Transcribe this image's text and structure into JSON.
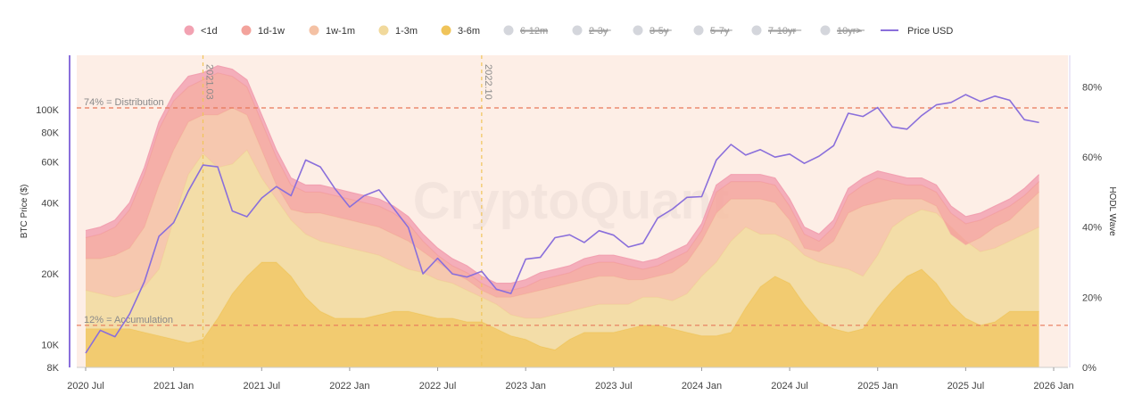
{
  "watermark": "CryptoQuant",
  "chart_data": {
    "type": "area",
    "legend": [
      {
        "label": "<1d",
        "color": "#f2a2b2",
        "active": true
      },
      {
        "label": "1d-1w",
        "color": "#f3a39c",
        "active": true
      },
      {
        "label": "1w-1m",
        "color": "#f4c1a4",
        "active": true
      },
      {
        "label": "1-3m",
        "color": "#f1d99c",
        "active": true
      },
      {
        "label": "3-6m",
        "color": "#f0c45a",
        "active": true
      },
      {
        "label": "6-12m",
        "color": "#d4d6dc",
        "active": false
      },
      {
        "label": "2-3y",
        "color": "#d4d6dc",
        "active": false
      },
      {
        "label": "3-5y",
        "color": "#d4d6dc",
        "active": false
      },
      {
        "label": "5-7y",
        "color": "#d4d6dc",
        "active": false
      },
      {
        "label": "7-10yr",
        "color": "#d4d6dc",
        "active": false
      },
      {
        "label": "10yr>",
        "color": "#d4d6dc",
        "active": false
      },
      {
        "label": "Price USD",
        "color": "#8a6fdb",
        "active": true,
        "line": true
      }
    ],
    "x_ticks": [
      "2020 Jul",
      "2021 Jan",
      "2021 Jul",
      "2022 Jan",
      "2022 Jul",
      "2023 Jan",
      "2023 Jul",
      "2024 Jan",
      "2024 Jul",
      "2025 Jan",
      "2025 Jul",
      "2026 Jan"
    ],
    "xlim": [
      "2020-07",
      "2026-01"
    ],
    "y_left": {
      "label": "BTC Price ($)",
      "scale": "log",
      "ticks": [
        "8K",
        "10K",
        "20K",
        "40K",
        "60K",
        "80K",
        "100K"
      ],
      "tick_values": [
        8000,
        10000,
        20000,
        40000,
        60000,
        80000,
        100000
      ],
      "range": [
        8000,
        170000
      ]
    },
    "y_right": {
      "label": "HODL Wave",
      "ticks": [
        "0%",
        "20%",
        "40%",
        "60%",
        "80%"
      ],
      "tick_values": [
        0,
        20,
        40,
        60,
        80
      ],
      "range": [
        0,
        89
      ]
    },
    "reference_lines": [
      {
        "value": 74,
        "label": "74% = Distribution",
        "color": "#e8785a"
      },
      {
        "value": 12,
        "label": "12% = Accumulation",
        "color": "#e8785a"
      }
    ],
    "event_lines": [
      {
        "date": "2021-03",
        "label": "2021.03",
        "color": "#f0c45a"
      },
      {
        "date": "2022-10",
        "label": "2022.10",
        "color": "#f0c45a"
      }
    ],
    "x": [
      "2020-07",
      "2020-08",
      "2020-09",
      "2020-10",
      "2020-11",
      "2020-12",
      "2021-01",
      "2021-02",
      "2021-03",
      "2021-04",
      "2021-05",
      "2021-06",
      "2021-07",
      "2021-08",
      "2021-09",
      "2021-10",
      "2021-11",
      "2021-12",
      "2022-01",
      "2022-02",
      "2022-03",
      "2022-04",
      "2022-05",
      "2022-06",
      "2022-07",
      "2022-08",
      "2022-09",
      "2022-10",
      "2022-11",
      "2022-12",
      "2023-01",
      "2023-02",
      "2023-03",
      "2023-04",
      "2023-05",
      "2023-06",
      "2023-07",
      "2023-08",
      "2023-09",
      "2023-10",
      "2023-11",
      "2023-12",
      "2024-01",
      "2024-02",
      "2024-03",
      "2024-04",
      "2024-05",
      "2024-06",
      "2024-07",
      "2024-08",
      "2024-09",
      "2024-10",
      "2024-11",
      "2024-12",
      "2025-01",
      "2025-02",
      "2025-03",
      "2025-04",
      "2025-05",
      "2025-06",
      "2025-07",
      "2025-08",
      "2025-09",
      "2025-10",
      "2025-11",
      "2025-12"
    ],
    "series": [
      {
        "name": "3-6m",
        "color": "#f0c45a",
        "values": [
          11,
          11,
          11,
          11,
          10,
          9,
          8,
          7,
          8,
          14,
          21,
          26,
          30,
          30,
          26,
          20,
          16,
          14,
          14,
          14,
          15,
          16,
          16,
          15,
          14,
          14,
          13,
          13,
          11,
          9,
          8,
          6,
          5,
          8,
          10,
          10,
          10,
          11,
          12,
          12,
          11,
          10,
          9,
          9,
          10,
          17,
          23,
          26,
          24,
          18,
          13,
          11,
          10,
          11,
          17,
          22,
          26,
          28,
          24,
          18,
          14,
          12,
          13,
          16,
          16,
          16
        ]
      },
      {
        "name": "1-3m",
        "color": "#f1d99c",
        "values": [
          22,
          21,
          20,
          21,
          23,
          28,
          42,
          55,
          61,
          57,
          58,
          62,
          54,
          48,
          42,
          38,
          36,
          35,
          34,
          33,
          32,
          30,
          28,
          27,
          25,
          24,
          22,
          20,
          18,
          15,
          14,
          14,
          15,
          16,
          17,
          18,
          18,
          18,
          20,
          20,
          19,
          21,
          26,
          30,
          36,
          40,
          38,
          38,
          36,
          32,
          30,
          29,
          28,
          26,
          32,
          40,
          43,
          45,
          44,
          40,
          36,
          33,
          34,
          36,
          38,
          40
        ]
      },
      {
        "name": "1w-1m",
        "color": "#f4c1a4",
        "values": [
          31,
          31,
          32,
          34,
          40,
          52,
          62,
          70,
          72,
          72,
          74,
          72,
          62,
          52,
          45,
          44,
          44,
          43,
          42,
          41,
          40,
          38,
          36,
          33,
          30,
          27,
          25,
          22,
          20,
          20,
          21,
          22,
          23,
          24,
          25,
          26,
          26,
          25,
          25,
          26,
          27,
          30,
          36,
          44,
          48,
          48,
          48,
          47,
          42,
          34,
          33,
          36,
          44,
          46,
          47,
          48,
          48,
          48,
          46,
          38,
          35,
          37,
          40,
          42,
          46,
          50
        ]
      },
      {
        "name": "1d-1w",
        "color": "#f3a39c",
        "values": [
          37,
          38,
          40,
          45,
          55,
          68,
          76,
          80,
          82,
          84,
          83,
          80,
          70,
          60,
          52,
          50,
          50,
          49,
          48,
          47,
          46,
          44,
          41,
          36,
          32,
          29,
          27,
          24,
          22,
          22,
          23,
          25,
          26,
          27,
          29,
          30,
          30,
          29,
          28,
          29,
          31,
          33,
          39,
          50,
          53,
          53,
          53,
          52,
          46,
          38,
          36,
          40,
          49,
          52,
          54,
          53,
          52,
          52,
          50,
          44,
          41,
          42,
          44,
          46,
          49,
          53
        ]
      },
      {
        "name": "<1d",
        "color": "#f2a2b2",
        "values": [
          39,
          40,
          42,
          47,
          57,
          70,
          78,
          83,
          84,
          86,
          85,
          82,
          72,
          62,
          54,
          52,
          52,
          51,
          50,
          49,
          48,
          46,
          43,
          38,
          34,
          31,
          29,
          26,
          24,
          24,
          25,
          27,
          28,
          29,
          31,
          32,
          32,
          31,
          30,
          31,
          33,
          35,
          41,
          52,
          55,
          55,
          55,
          54,
          48,
          40,
          38,
          42,
          51,
          54,
          56,
          55,
          54,
          54,
          52,
          46,
          43,
          44,
          46,
          48,
          51,
          55
        ]
      },
      {
        "name": "Price USD",
        "color": "#8a6fdb",
        "axis": "left",
        "values": [
          9200,
          11500,
          10800,
          13500,
          18500,
          28900,
          33000,
          45000,
          58000,
          57000,
          37000,
          35000,
          42000,
          47000,
          43000,
          61000,
          57000,
          46000,
          38500,
          43000,
          45500,
          38000,
          31500,
          20000,
          23300,
          20000,
          19400,
          20500,
          17200,
          16500,
          23100,
          23500,
          28500,
          29300,
          27200,
          30500,
          29200,
          26000,
          27000,
          34500,
          37700,
          42300,
          42600,
          61000,
          71000,
          64000,
          67500,
          62700,
          64600,
          59000,
          63300,
          70200,
          96400,
          93400,
          102000,
          84300,
          82500,
          94200,
          104600,
          107100,
          115700,
          108200,
          114000,
          109500,
          90500,
          88000
        ]
      }
    ]
  }
}
